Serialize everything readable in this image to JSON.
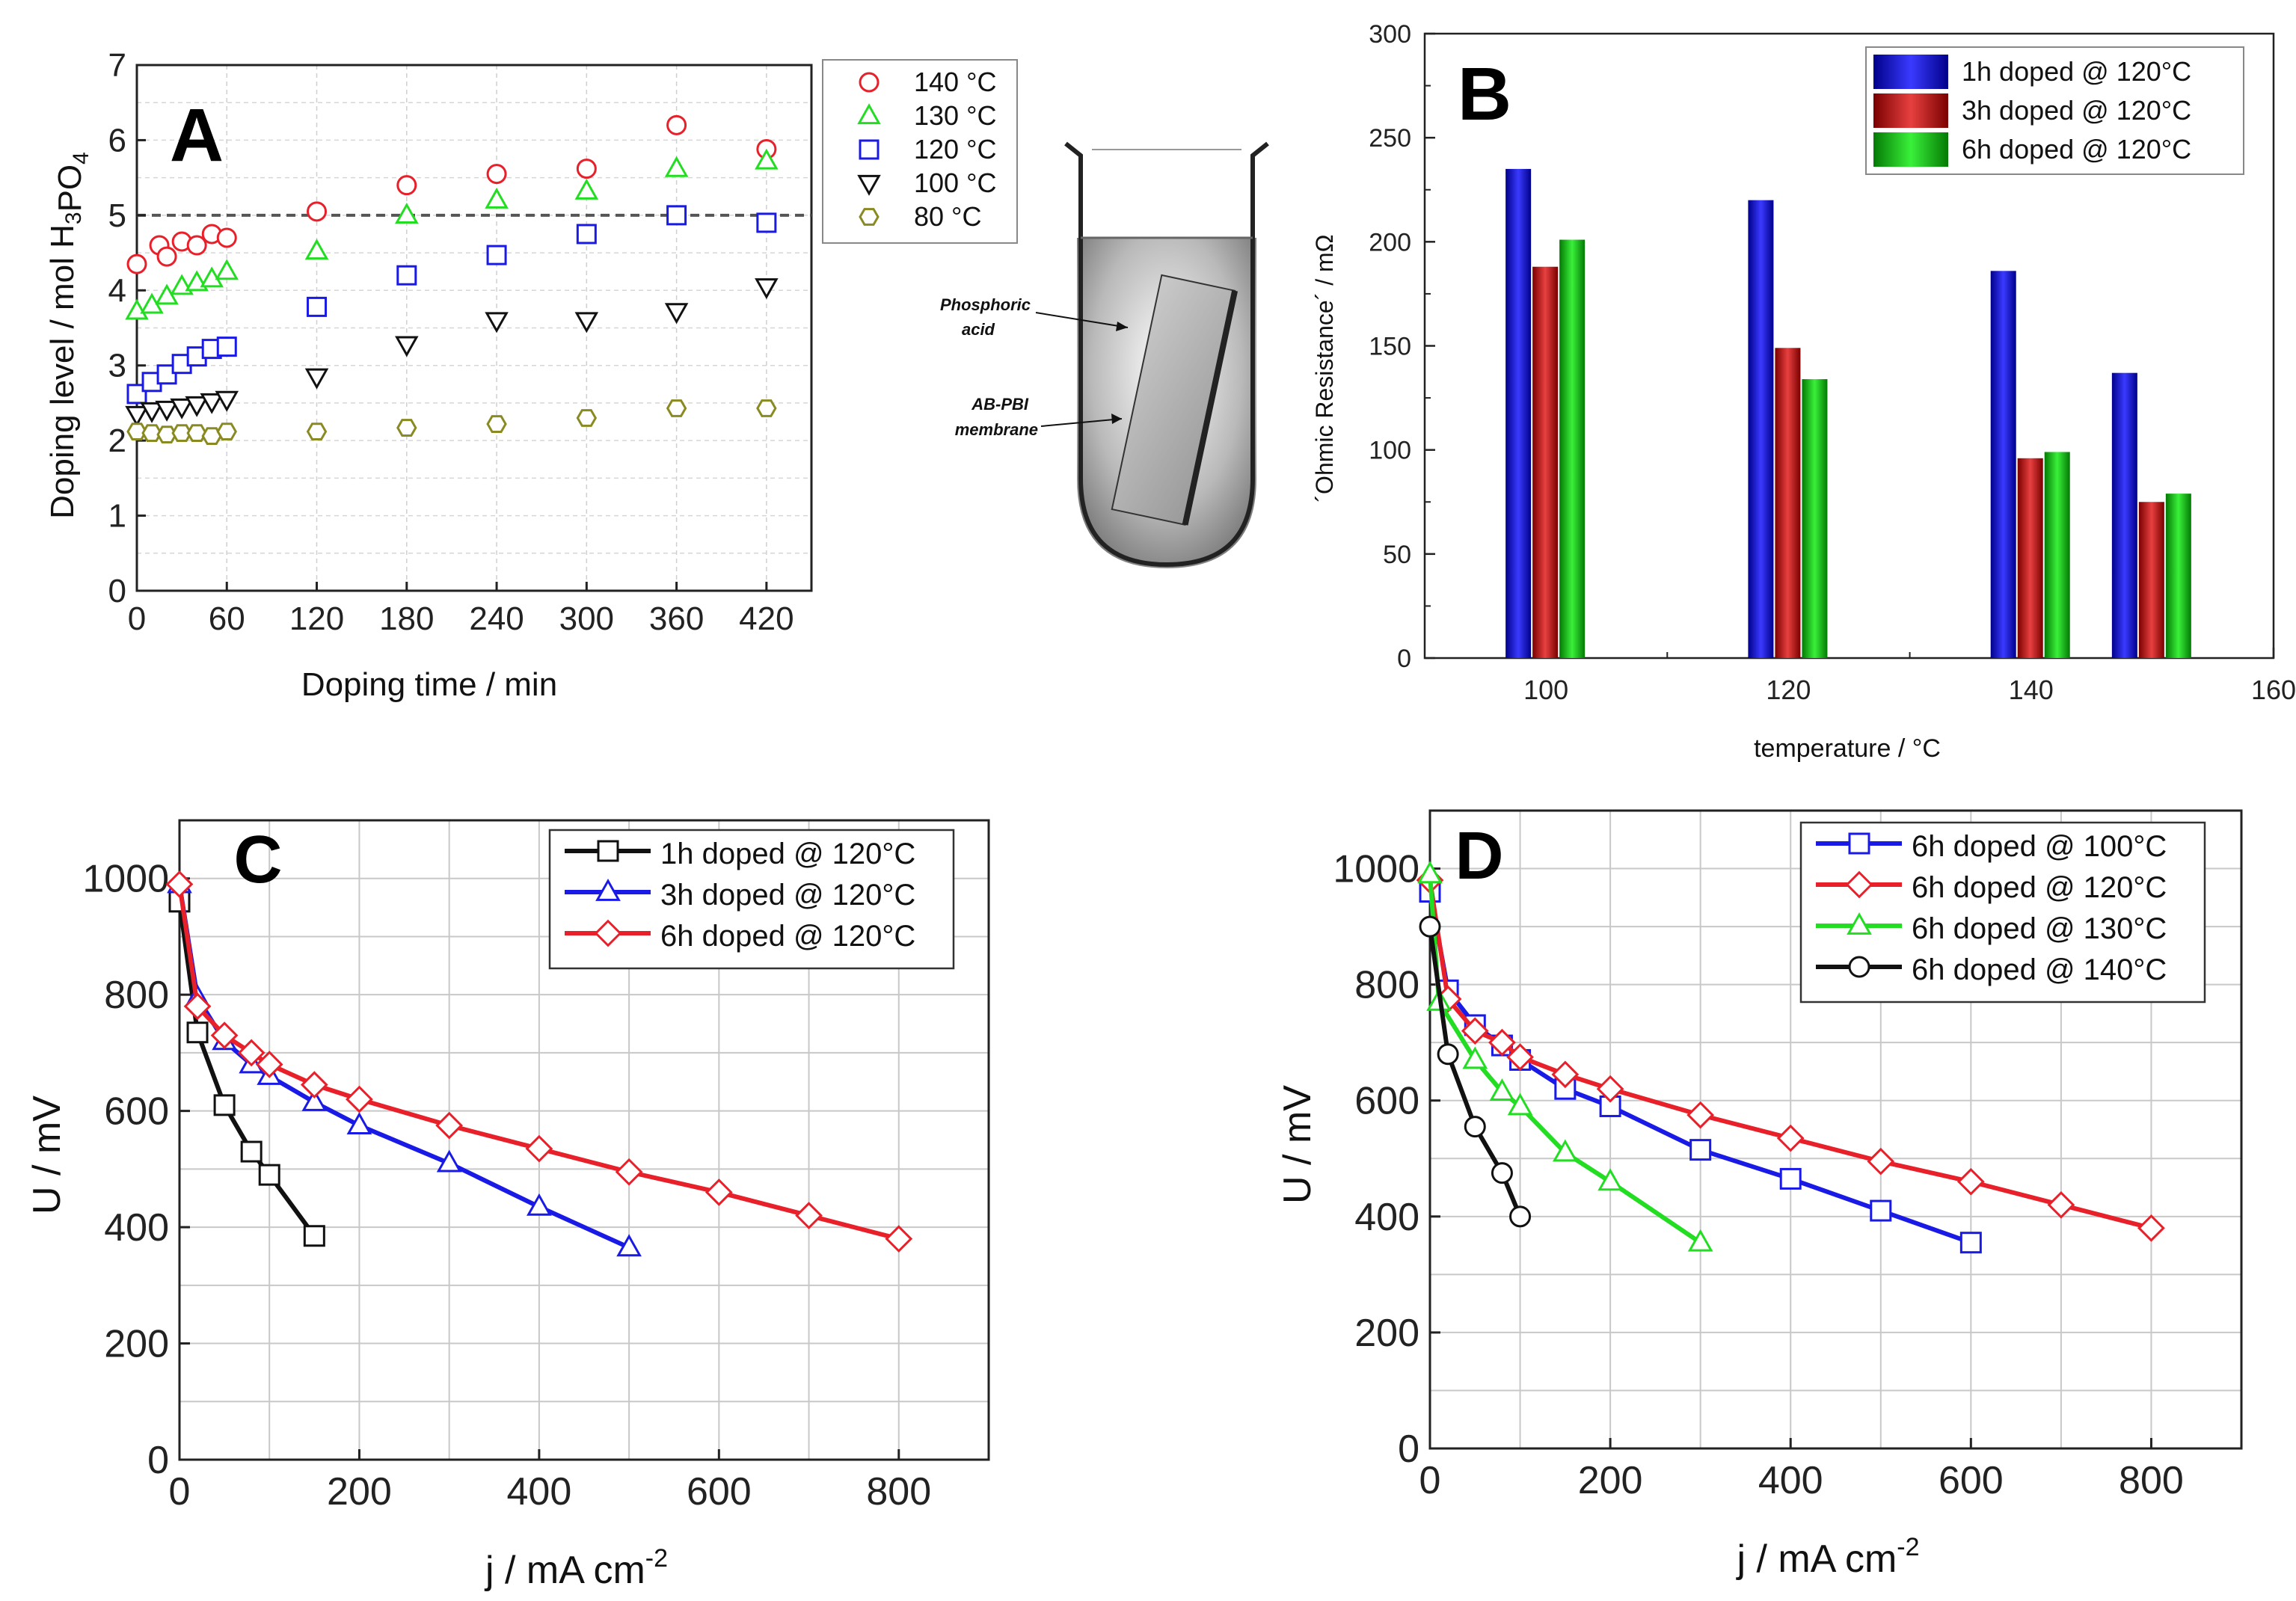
{
  "colors": {
    "red": "#e8202a",
    "green": "#22dd22",
    "blue": "#1a1ae6",
    "black": "#111111",
    "olive": "#8a8a22",
    "barBlue": "#0b0bd0",
    "barRed": "#c40000",
    "barGreen": "#0cb80c"
  },
  "tube": {
    "label_acid": "Phosphoric\nacid",
    "label_membrane": "AB-PBI\nmembrane"
  },
  "chart_data": [
    {
      "panel": "A",
      "type": "scatter",
      "title": "",
      "xlabel": "Doping time / min",
      "ylabel": "Doping level / mol H3PO4",
      "xlim": [
        0,
        450
      ],
      "ylim": [
        0,
        7
      ],
      "xticks": [
        "0",
        "60",
        "120",
        "180",
        "240",
        "300",
        "360",
        "420"
      ],
      "yticks": [
        "0",
        "1",
        "2",
        "3",
        "4",
        "5",
        "6",
        "7"
      ],
      "hline": 5,
      "grid": true,
      "legend_position": "top-right-outside",
      "series": [
        {
          "name": "140 °C",
          "marker": "circle",
          "color": "red",
          "x": [
            0,
            15,
            20,
            30,
            40,
            50,
            60,
            120,
            180,
            240,
            300,
            360,
            420
          ],
          "y": [
            4.35,
            4.6,
            4.45,
            4.65,
            4.6,
            4.75,
            4.7,
            5.05,
            5.4,
            5.55,
            5.62,
            6.2,
            5.88
          ]
        },
        {
          "name": "130 °C",
          "marker": "triangle-up",
          "color": "green",
          "x": [
            0,
            10,
            20,
            30,
            40,
            50,
            60,
            120,
            180,
            240,
            300,
            360,
            420
          ],
          "y": [
            3.72,
            3.8,
            3.92,
            4.05,
            4.1,
            4.15,
            4.25,
            4.52,
            5.0,
            5.2,
            5.32,
            5.62,
            5.72
          ]
        },
        {
          "name": "120 °C",
          "marker": "square",
          "color": "blue",
          "x": [
            0,
            10,
            20,
            30,
            40,
            50,
            60,
            120,
            180,
            240,
            300,
            360,
            420
          ],
          "y": [
            2.62,
            2.78,
            2.88,
            3.02,
            3.12,
            3.22,
            3.25,
            3.78,
            4.2,
            4.47,
            4.75,
            5.0,
            4.9
          ]
        },
        {
          "name": "100 °C",
          "marker": "triangle-down",
          "color": "black",
          "x": [
            0,
            10,
            20,
            30,
            40,
            50,
            60,
            120,
            180,
            240,
            300,
            360,
            420
          ],
          "y": [
            2.35,
            2.4,
            2.42,
            2.45,
            2.48,
            2.52,
            2.55,
            2.85,
            3.28,
            3.6,
            3.6,
            3.72,
            4.05
          ]
        },
        {
          "name": "80 °C",
          "marker": "hexagon",
          "color": "olive",
          "x": [
            0,
            10,
            20,
            30,
            40,
            50,
            60,
            120,
            180,
            240,
            300,
            360,
            420
          ],
          "y": [
            2.12,
            2.1,
            2.08,
            2.1,
            2.1,
            2.06,
            2.12,
            2.12,
            2.17,
            2.22,
            2.3,
            2.43,
            2.43
          ]
        }
      ]
    },
    {
      "panel": "B",
      "type": "bar",
      "title": "",
      "xlabel": "temperature / °C",
      "ylabel": "´Ohmic Resistance´ / mΩ",
      "xlim": [
        90,
        160
      ],
      "ylim": [
        0,
        300
      ],
      "xticks": [
        "100",
        "120",
        "140",
        "160"
      ],
      "yticks": [
        "0",
        "50",
        "100",
        "150",
        "200",
        "250",
        "300"
      ],
      "grid": false,
      "legend_position": "top-right",
      "categories": [
        "100",
        "120",
        "140",
        "150"
      ],
      "series": [
        {
          "name": "1h doped @ 120°C",
          "color": "barBlue",
          "values": [
            235,
            220,
            186,
            137
          ]
        },
        {
          "name": "3h doped @ 120°C",
          "color": "barRed",
          "values": [
            188,
            149,
            96,
            75
          ]
        },
        {
          "name": "6h doped @ 120°C",
          "color": "barGreen",
          "values": [
            201,
            134,
            99,
            79
          ]
        }
      ]
    },
    {
      "panel": "C",
      "type": "line",
      "title": "",
      "xlabel": "j / mA cm",
      "xlabel_sup": "-2",
      "ylabel": "U / mV",
      "xlim": [
        0,
        900
      ],
      "ylim": [
        0,
        1100
      ],
      "xticks": [
        "0",
        "200",
        "400",
        "600",
        "800"
      ],
      "yticks": [
        "0",
        "200",
        "400",
        "600",
        "800",
        "1000"
      ],
      "grid": true,
      "legend_position": "top-right",
      "series": [
        {
          "name": "1h doped @ 120°C",
          "marker": "square",
          "color": "black",
          "x": [
            0,
            20,
            50,
            80,
            100,
            150
          ],
          "y": [
            960,
            735,
            610,
            530,
            490,
            385
          ]
        },
        {
          "name": "3h doped @ 120°C",
          "marker": "triangle-up",
          "color": "blue",
          "x": [
            0,
            20,
            50,
            80,
            100,
            150,
            200,
            300,
            400,
            500
          ],
          "y": [
            990,
            795,
            720,
            680,
            660,
            615,
            575,
            510,
            435,
            365
          ]
        },
        {
          "name": "6h doped @ 120°C",
          "marker": "diamond",
          "color": "red",
          "x": [
            0,
            20,
            50,
            80,
            100,
            150,
            200,
            300,
            400,
            500,
            600,
            700,
            800
          ],
          "y": [
            990,
            780,
            730,
            700,
            680,
            645,
            620,
            575,
            535,
            495,
            460,
            420,
            380
          ]
        }
      ]
    },
    {
      "panel": "D",
      "type": "line",
      "title": "",
      "xlabel": "j / mA cm",
      "xlabel_sup": "-2",
      "ylabel": "U / mV",
      "xlim": [
        0,
        900
      ],
      "ylim": [
        0,
        1100
      ],
      "xticks": [
        "0",
        "200",
        "400",
        "600",
        "800"
      ],
      "yticks": [
        "0",
        "200",
        "400",
        "600",
        "800",
        "1000"
      ],
      "grid": true,
      "legend_position": "top-right",
      "series": [
        {
          "name": "6h doped @ 100°C",
          "marker": "square",
          "color": "blue",
          "x": [
            0,
            20,
            50,
            80,
            100,
            150,
            200,
            300,
            400,
            500,
            600
          ],
          "y": [
            960,
            790,
            730,
            695,
            670,
            620,
            590,
            515,
            465,
            410,
            355
          ]
        },
        {
          "name": "6h doped @ 120°C",
          "marker": "diamond",
          "color": "red",
          "x": [
            0,
            20,
            50,
            80,
            100,
            150,
            200,
            300,
            400,
            500,
            600,
            700,
            800
          ],
          "y": [
            980,
            775,
            720,
            700,
            675,
            645,
            620,
            575,
            535,
            495,
            460,
            420,
            380
          ]
        },
        {
          "name": "6h doped @ 130°C",
          "marker": "triangle-up",
          "color": "green",
          "x": [
            0,
            10,
            50,
            80,
            100,
            150,
            200,
            300
          ],
          "y": [
            990,
            770,
            670,
            615,
            590,
            510,
            460,
            355
          ]
        },
        {
          "name": "6h doped @ 140°C",
          "marker": "circle",
          "color": "black",
          "x": [
            0,
            20,
            50,
            80,
            100
          ],
          "y": [
            900,
            680,
            555,
            475,
            400
          ]
        }
      ]
    }
  ]
}
